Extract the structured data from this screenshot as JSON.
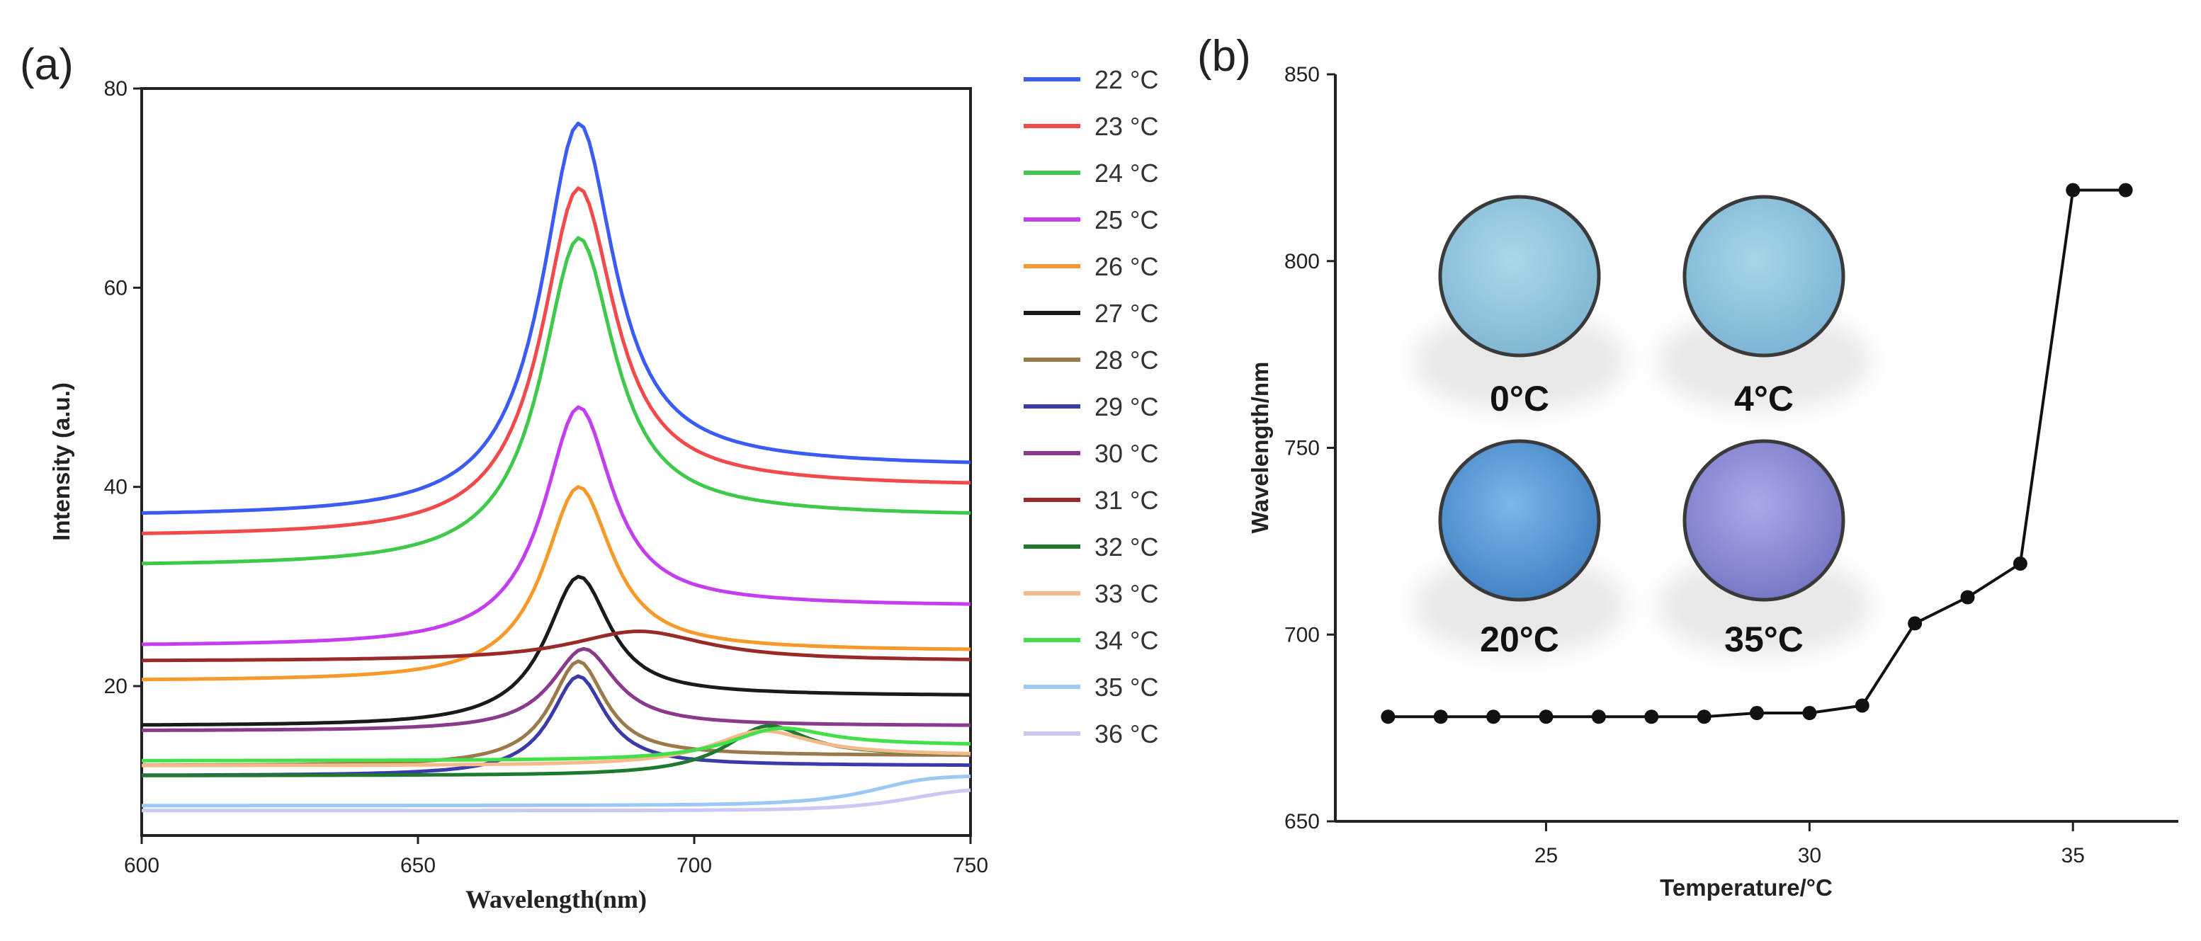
{
  "panels": {
    "a": {
      "label": "(a)"
    },
    "b": {
      "label": "(b)"
    }
  },
  "chart_data": [
    {
      "id": "a",
      "type": "line",
      "xlabel": "Wavelength(nm)",
      "ylabel": "Intensity (a.u.)",
      "xlim": [
        600,
        750
      ],
      "ylim": [
        5,
        80
      ],
      "xticks": [
        600,
        650,
        700,
        750
      ],
      "yticks": [
        20,
        40,
        60,
        80
      ],
      "legend_position": "right-outside",
      "series": [
        {
          "name": "22 °C",
          "color": "#3a5cf5",
          "base_left": 37,
          "base_right": 42,
          "peak_center": 679,
          "peak_height": 37,
          "peak_width": 16
        },
        {
          "name": "23 °C",
          "color": "#f24a4a",
          "base_left": 35,
          "base_right": 40,
          "peak_center": 679,
          "peak_height": 32.5,
          "peak_width": 16
        },
        {
          "name": "24 °C",
          "color": "#3fc94a",
          "base_left": 32,
          "base_right": 37,
          "peak_center": 679,
          "peak_height": 30.5,
          "peak_width": 16
        },
        {
          "name": "25 °C",
          "color": "#c43ef0",
          "base_left": 24,
          "base_right": 28,
          "peak_center": 679,
          "peak_height": 22,
          "peak_width": 15
        },
        {
          "name": "26 °C",
          "color": "#f79a2b",
          "base_left": 20.5,
          "base_right": 23.5,
          "peak_center": 679,
          "peak_height": 18,
          "peak_width": 15
        },
        {
          "name": "27 °C",
          "color": "#1a1a1a",
          "base_left": 16,
          "base_right": 19,
          "peak_center": 679,
          "peak_height": 13.5,
          "peak_width": 14
        },
        {
          "name": "28 °C",
          "color": "#9a7a4a",
          "base_left": 12,
          "base_right": 13,
          "peak_center": 679,
          "peak_height": 10,
          "peak_width": 12
        },
        {
          "name": "29 °C",
          "color": "#3a3aa8",
          "base_left": 11,
          "base_right": 12,
          "peak_center": 679,
          "peak_height": 9.5,
          "peak_width": 12
        },
        {
          "name": "30 °C",
          "color": "#8a3a8a",
          "base_left": 15.5,
          "base_right": 16,
          "peak_center": 680,
          "peak_height": 8,
          "peak_width": 14
        },
        {
          "name": "31 °C",
          "color": "#9a2a2a",
          "base_left": 22.5,
          "base_right": 22.5,
          "peak_center": 690,
          "peak_height": 3,
          "peak_width": 30
        },
        {
          "name": "32 °C",
          "color": "#1f7a2f",
          "base_left": 11,
          "base_right": 13,
          "peak_center": 713,
          "peak_height": 4,
          "peak_width": 18
        },
        {
          "name": "33 °C",
          "color": "#f5b98a",
          "base_left": 12,
          "base_right": 13,
          "peak_center": 712,
          "peak_height": 3,
          "peak_width": 22
        },
        {
          "name": "34 °C",
          "color": "#44e04a",
          "base_left": 12.5,
          "base_right": 14,
          "peak_center": 715,
          "peak_height": 2.5,
          "peak_width": 22
        },
        {
          "name": "35 °C",
          "color": "#9cc8f5",
          "base_left": 8,
          "base_right": 11,
          "peak_center": 740,
          "peak_height": 1,
          "peak_width": 25
        },
        {
          "name": "36 °C",
          "color": "#cbc8f5",
          "base_left": 7.5,
          "base_right": 10,
          "peak_center": 745,
          "peak_height": 0.5,
          "peak_width": 25
        }
      ]
    },
    {
      "id": "b",
      "type": "line",
      "xlabel": "Temperature/°C",
      "ylabel": "Wavelength/nm",
      "xlim": [
        21,
        37
      ],
      "ylim": [
        650,
        850
      ],
      "xticks": [
        25,
        30,
        35
      ],
      "yticks": [
        650,
        700,
        750,
        800,
        850
      ],
      "marker": "circle",
      "color": "#111111",
      "x": [
        22,
        23,
        24,
        25,
        26,
        27,
        28,
        29,
        30,
        31,
        32,
        33,
        34,
        35,
        36
      ],
      "y": [
        678,
        678,
        678,
        678,
        678,
        678,
        678,
        679,
        679,
        681,
        703,
        710,
        719,
        819,
        819
      ],
      "insets": [
        {
          "label": "0°C",
          "color": "#8cc6de"
        },
        {
          "label": "4°C",
          "color": "#8ac3dd"
        },
        {
          "label": "20°C",
          "color": "#5a9bd8"
        },
        {
          "label": "35°C",
          "color": "#8e8fd8"
        }
      ]
    }
  ]
}
